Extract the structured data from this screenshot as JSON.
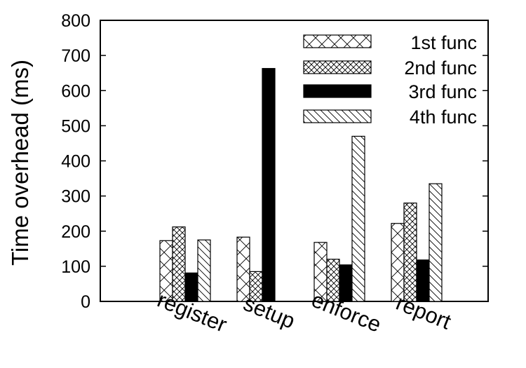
{
  "chart_data": {
    "type": "bar",
    "title": "",
    "xlabel": "",
    "ylabel": "Time overhead (ms)",
    "ylim": [
      0,
      800
    ],
    "yticks": [
      0,
      100,
      200,
      300,
      400,
      500,
      600,
      700,
      800
    ],
    "categories": [
      "register",
      "setup",
      "enforce",
      "report"
    ],
    "series": [
      {
        "name": "1st func",
        "values": [
          173,
          183,
          168,
          222
        ],
        "pattern": "crosshatch-wide"
      },
      {
        "name": "2nd func",
        "values": [
          212,
          85,
          120,
          280
        ],
        "pattern": "crosshatch-dense"
      },
      {
        "name": "3rd func",
        "values": [
          81,
          663,
          104,
          118
        ],
        "pattern": "solid"
      },
      {
        "name": "4th func",
        "values": [
          175,
          null,
          470,
          335
        ],
        "pattern": "diagonal"
      }
    ],
    "legend_position": "top-right",
    "grid": false,
    "colors": {
      "bar_stroke": "#000000",
      "fill_solid": "#000000",
      "background": "#ffffff"
    }
  }
}
